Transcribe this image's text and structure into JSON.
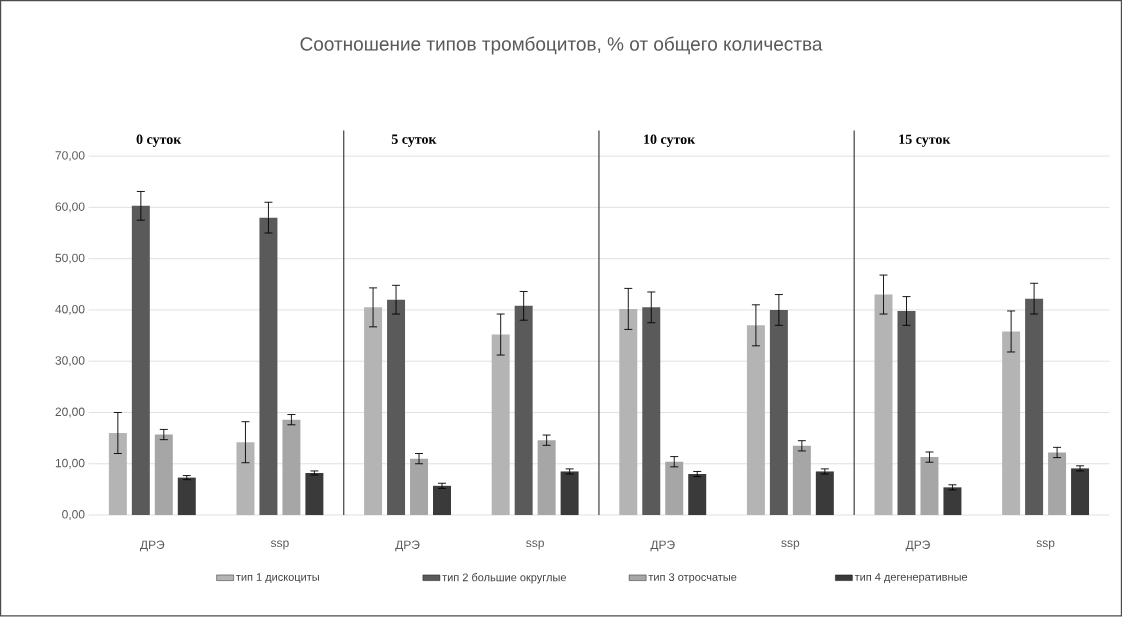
{
  "chart_data": {
    "type": "bar",
    "title": "Соотношение типов тромбоцитов, % от общего количества",
    "categories": [
      "ДРЭ",
      "ssp",
      "ДРЭ",
      "ssp",
      "ДРЭ",
      "ssp",
      "ДРЭ",
      "ssp"
    ],
    "series": [
      {
        "name": "тип 1 дискоциты",
        "color": "#b4b4b4",
        "values": [
          16,
          14.2,
          40.5,
          35.2,
          40.2,
          37,
          43,
          35.8
        ],
        "errors": [
          4,
          4,
          3.8,
          4,
          4,
          4,
          3.8,
          4
        ]
      },
      {
        "name": "тип 2 большие округлые",
        "color": "#5a5a5a",
        "values": [
          60.3,
          58,
          42,
          40.8,
          40.5,
          40,
          39.8,
          42.2
        ],
        "errors": [
          2.8,
          3,
          2.8,
          2.8,
          3,
          3,
          2.8,
          3
        ]
      },
      {
        "name": "тип 3 отросчатые",
        "color": "#a6a6a6",
        "values": [
          15.7,
          18.6,
          11,
          14.6,
          10.4,
          13.5,
          11.3,
          12.2
        ],
        "errors": [
          1,
          1,
          1,
          1,
          1,
          1,
          1,
          1
        ]
      },
      {
        "name": "тип 4 дегенеративные",
        "color": "#3a3a3a",
        "values": [
          7.3,
          8.2,
          5.7,
          8.5,
          8,
          8.5,
          5.4,
          9.1
        ],
        "errors": [
          0.4,
          0.4,
          0.5,
          0.5,
          0.5,
          0.5,
          0.5,
          0.5
        ]
      }
    ],
    "annotations": [
      "0 суток",
      "5 суток",
      "10 суток",
      "15 суток"
    ],
    "ylim": [
      0,
      75
    ],
    "yticks": [
      {
        "value": 0,
        "label": "0,00"
      },
      {
        "value": 10,
        "label": "10,00"
      },
      {
        "value": 20,
        "label": "20,00"
      },
      {
        "value": 30,
        "label": "30,00"
      },
      {
        "value": 40,
        "label": "40,00"
      },
      {
        "value": 50,
        "label": "50,00"
      },
      {
        "value": 60,
        "label": "60,00"
      },
      {
        "value": 70,
        "label": "70,00"
      }
    ],
    "grid": "y",
    "legend": "bottom"
  }
}
